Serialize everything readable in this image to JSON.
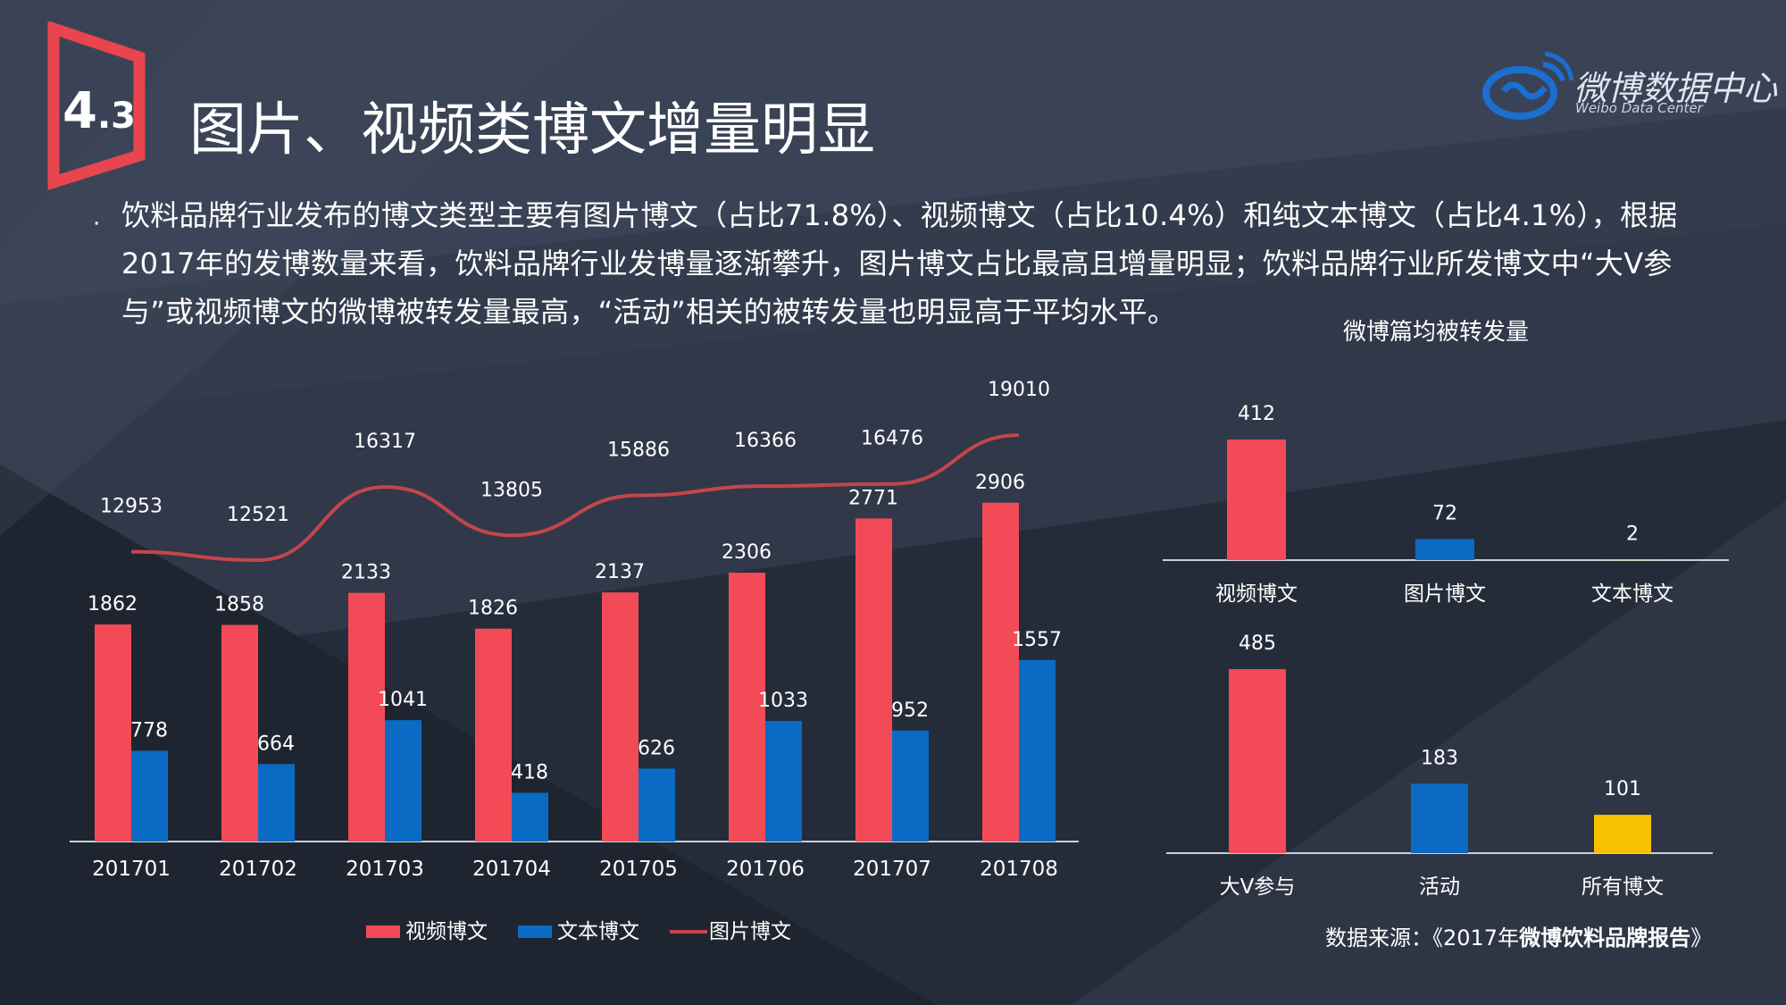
{
  "section": {
    "number": "4",
    "sub": ".3"
  },
  "title": "图片、视频类博文增量明显",
  "brand": {
    "name": "微博数据中心",
    "subtitle": "Weibo Data Center"
  },
  "summary": "饮料品牌行业发布的博文类型主要有图片博文（占比71.8%）、视频博文（占比10.4%）和纯文本博文（占比4.1%），根据2017年的发博数量来看，饮料品牌行业发博量逐渐攀升，图片博文占比最高且增量明显；饮料品牌行业所发博文中“大V参与”或视频博文的微博被转发量最高，“活动”相关的被转发量也明显高于平均水平。",
  "source": {
    "prefix": "数据来源：《2017年",
    "bold": "微博饮料品牌报告",
    "suffix": "》"
  },
  "colors": {
    "video": "#f24b57",
    "text": "#0b6bc4",
    "image_line": "#c2464d",
    "all": "#f7c000",
    "title_bar": "#e8454f"
  },
  "chart_data": [
    {
      "type": "bar",
      "categories": [
        "201701",
        "201702",
        "201703",
        "201704",
        "201705",
        "201706",
        "201707",
        "201708"
      ],
      "series": [
        {
          "name": "视频博文",
          "type": "bar",
          "values": [
            1862,
            1858,
            2133,
            1826,
            2137,
            2306,
            2771,
            2906
          ]
        },
        {
          "name": "文本博文",
          "type": "bar",
          "values": [
            778,
            664,
            1041,
            418,
            626,
            1033,
            952,
            1557
          ]
        },
        {
          "name": "图片博文",
          "type": "line",
          "values": [
            12953,
            12521,
            16317,
            13805,
            15886,
            16366,
            16476,
            19010
          ]
        }
      ],
      "legend": "bottom"
    },
    {
      "type": "bar",
      "title": "微博篇均被转发量",
      "categories": [
        "视频博文",
        "图片博文",
        "文本博文"
      ],
      "values": [
        412,
        72,
        2
      ]
    },
    {
      "type": "bar",
      "categories": [
        "大V参与",
        "活动",
        "所有博文"
      ],
      "values": [
        485,
        183,
        101
      ]
    }
  ]
}
